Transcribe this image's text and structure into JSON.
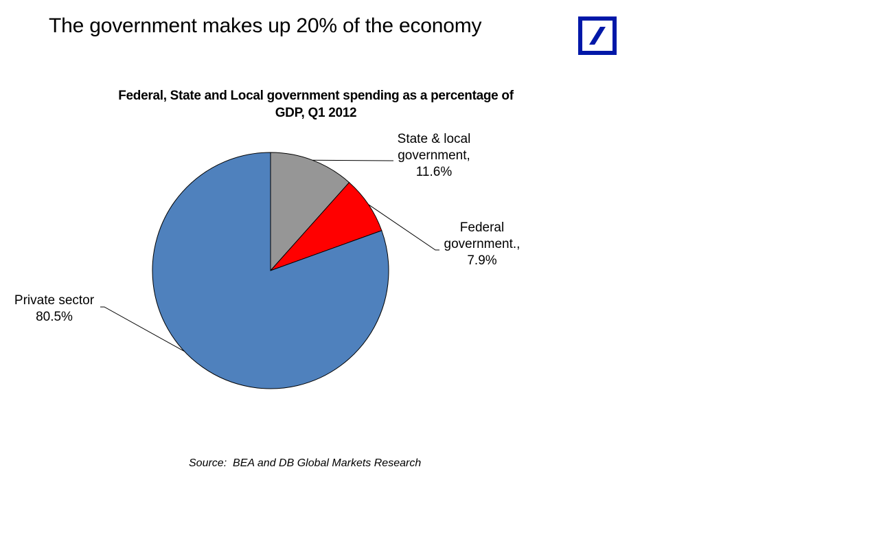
{
  "slide": {
    "title": "The government makes up 20% of the economy",
    "logo_icon": "deutsche-bank-logo-icon",
    "logo_color": "#0018A8"
  },
  "chart_data": {
    "type": "pie",
    "title_line1": "Federal, State and Local government spending as a percentage of",
    "title_line2": "GDP, Q1 2012",
    "start_angle": "12 o'clock",
    "direction": "clockwise",
    "slices": [
      {
        "name": "State & local government",
        "label_line1": "State & local",
        "label_line2": "government,",
        "value_label": "11.6%",
        "value": 11.6,
        "color": "#969696"
      },
      {
        "name": "Federal government",
        "label_line1": "Federal",
        "label_line2": "government.,",
        "value_label": "7.9%",
        "value": 7.9,
        "color": "#FF0000"
      },
      {
        "name": "Private sector",
        "label_line1": "Private sector",
        "label_line2": "",
        "value_label": "80.5%",
        "value": 80.5,
        "color": "#4F81BD"
      }
    ],
    "legend": "none"
  },
  "footer": {
    "source": "Source:  BEA and DB Global Markets Research"
  }
}
